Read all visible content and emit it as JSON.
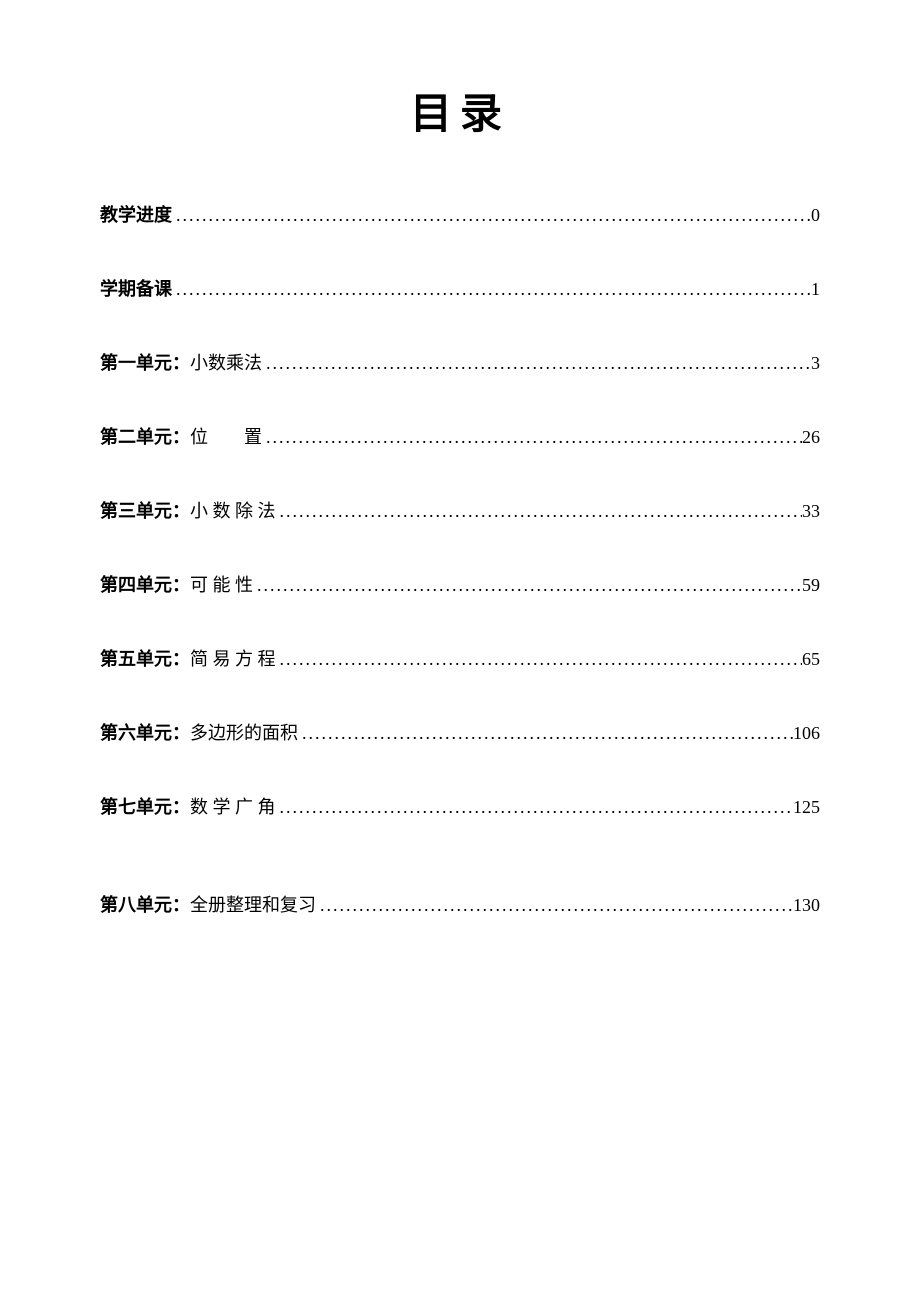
{
  "title": "目录",
  "entries": [
    {
      "label": "教学进度",
      "topic": "",
      "page": "0"
    },
    {
      "label": "学期备课",
      "topic": "",
      "page": "1"
    },
    {
      "label": "第一单元：",
      "topic": "小数乘法",
      "page": "3"
    },
    {
      "label": "第二单元：",
      "topic": "位　　置",
      "page": "26"
    },
    {
      "label": "第三单元：",
      "topic": "小 数 除 法",
      "page": "33"
    },
    {
      "label": "第四单元：",
      "topic": "可 能 性",
      "page": "59"
    },
    {
      "label": "第五单元：",
      "topic": "简 易 方 程",
      "page": "65"
    },
    {
      "label": "第六单元：",
      "topic": "多边形的面积",
      "page": "106"
    },
    {
      "label": "第七单元：",
      "topic": "数 学 广 角",
      "page": "125"
    },
    {
      "label": "第八单元：",
      "topic": "全册整理和复习",
      "page": "130"
    }
  ]
}
